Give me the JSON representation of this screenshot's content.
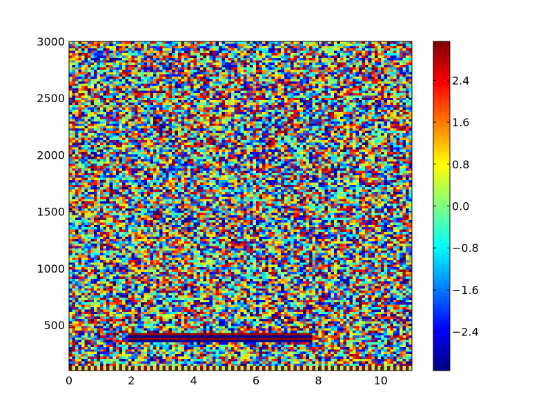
{
  "chart_data": {
    "type": "heatmap",
    "title": "",
    "xlabel": "",
    "ylabel": "",
    "xlim": [
      0,
      11
    ],
    "ylim": [
      100,
      3000
    ],
    "x_ticks": [
      0,
      2,
      4,
      6,
      8,
      10
    ],
    "x_tick_labels": [
      "0",
      "2",
      "4",
      "6",
      "8",
      "10"
    ],
    "y_ticks": [
      500,
      1000,
      1500,
      2000,
      2500,
      3000
    ],
    "y_tick_labels": [
      "500",
      "1000",
      "1500",
      "2000",
      "2500",
      "3000"
    ],
    "colormap": "jet",
    "color_range": [
      -3.14159,
      3.14159
    ],
    "colorbar": {
      "ticks": [
        2.4,
        1.6,
        0.8,
        0.0,
        -0.8,
        -1.6,
        -2.4
      ],
      "tick_labels": [
        "2.4",
        "1.6",
        "0.8",
        "0.0",
        "−0.8",
        "−1.6",
        "−2.4"
      ]
    },
    "grid": false,
    "pattern": {
      "description": "pseudo-random phase values across the field with regular striped structure near the bottom",
      "stripe_bands": [
        {
          "x_range": [
            1.9,
            7.8
          ],
          "y_range": [
            345,
            435
          ],
          "values": [
            -3.0,
            3.0,
            -3.0,
            3.0
          ]
        }
      ],
      "bottom_row": {
        "y_range": [
          100,
          135
        ],
        "values": [
          3.0,
          0.2
        ]
      }
    }
  }
}
